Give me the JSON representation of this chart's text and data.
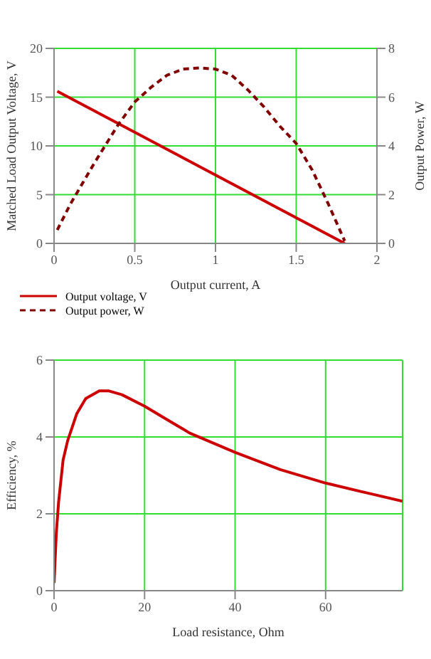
{
  "chart_data": [
    {
      "type": "line",
      "xlabel": "Output current, A",
      "ylabel": "Matched Load Output Voltage, V",
      "y2label": "Output Power, W",
      "xlim": [
        0,
        2
      ],
      "xticks": [
        0,
        0.5,
        1,
        1.5,
        2
      ],
      "ylim": [
        0,
        20
      ],
      "yticks": [
        0,
        5,
        10,
        15,
        20
      ],
      "y2lim": [
        0,
        8
      ],
      "y2ticks": [
        0,
        2,
        4,
        6,
        8
      ],
      "grid": true,
      "legend": "bottom",
      "marker": "none",
      "series": [
        {
          "name": "Output voltage, V",
          "color": "#cc0000",
          "line_style": "solid",
          "x": [
            0.02,
            1.8
          ],
          "values": [
            15.6,
            0
          ]
        },
        {
          "name": "Output power, W",
          "color": "#800000",
          "line_style": "dashed",
          "axis": "y2",
          "x": [
            0.02,
            0.1,
            0.25,
            0.4,
            0.5,
            0.6,
            0.7,
            0.8,
            0.9,
            1.0,
            1.1,
            1.2,
            1.3,
            1.4,
            1.5,
            1.6,
            1.7,
            1.8
          ],
          "values": [
            0.55,
            1.6,
            3.3,
            4.9,
            5.8,
            6.4,
            6.9,
            7.15,
            7.2,
            7.15,
            6.9,
            6.3,
            5.6,
            4.8,
            4.1,
            3.0,
            1.6,
            0.1
          ]
        }
      ]
    },
    {
      "type": "line",
      "xlabel": "Load resistance, Ohm",
      "ylabel": "Efficiency, %",
      "xlim": [
        0,
        77
      ],
      "xticks": [
        0,
        20,
        40,
        60
      ],
      "ylim": [
        0,
        6
      ],
      "yticks": [
        0,
        2,
        4,
        6
      ],
      "grid": true,
      "marker": "none",
      "series": [
        {
          "color": "#cc0000",
          "line_style": "solid",
          "x": [
            0,
            0.5,
            1,
            2,
            3,
            5,
            7,
            10,
            12,
            15,
            20,
            25,
            30,
            35,
            40,
            50,
            60,
            70,
            77
          ],
          "values": [
            0.2,
            1.5,
            2.3,
            3.4,
            3.9,
            4.6,
            5.0,
            5.2,
            5.2,
            5.1,
            4.8,
            4.45,
            4.1,
            3.85,
            3.6,
            3.15,
            2.8,
            2.52,
            2.33
          ]
        }
      ]
    }
  ]
}
